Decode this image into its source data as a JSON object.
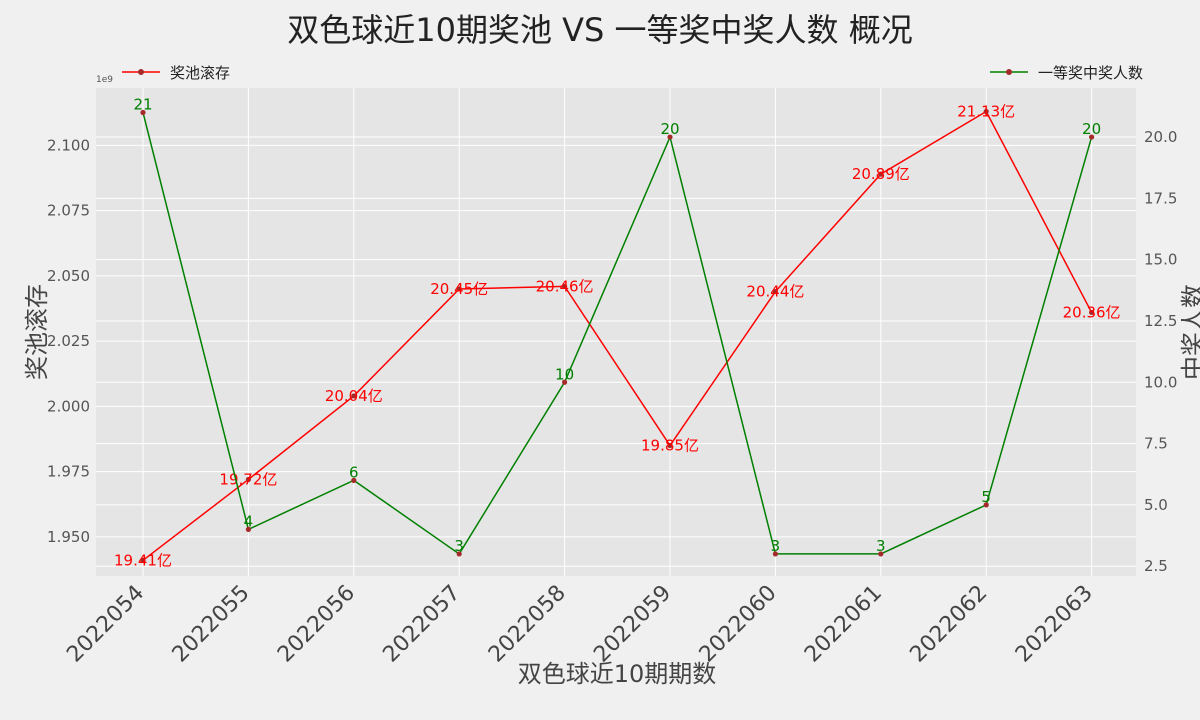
{
  "chart_data": {
    "type": "line",
    "title": "双色球近10期奖池 VS 一等奖中奖人数 概况",
    "xlabel": "双色球近10期期数",
    "ylabel_left": "奖池滚存",
    "ylabel_right": "中奖人数",
    "y_left_multiplier": "1e9",
    "categories": [
      "2022054",
      "2022055",
      "2022056",
      "2022057",
      "2022058",
      "2022059",
      "2022060",
      "2022061",
      "2022062",
      "2022063"
    ],
    "y_left_ticks": [
      "1.950",
      "1.975",
      "2.000",
      "2.025",
      "2.050",
      "2.075",
      "2.100"
    ],
    "y_right_ticks": [
      "2.5",
      "5.0",
      "7.5",
      "10.0",
      "12.5",
      "15.0",
      "17.5",
      "20.0"
    ],
    "ylim_left": [
      1.935,
      2.122
    ],
    "ylim_right": [
      2.1,
      22.0
    ],
    "grid": true,
    "series": [
      {
        "name": "奖池滚存",
        "axis": "left",
        "color": "#ff0000",
        "values": [
          1.941,
          1.972,
          2.004,
          2.045,
          2.046,
          1.985,
          2.044,
          2.089,
          2.113,
          2.036
        ],
        "labels": [
          "19.41亿",
          "19.72亿",
          "20.04亿",
          "20.45亿",
          "20.46亿",
          "19.85亿",
          "20.44亿",
          "20.89亿",
          "21.13亿",
          "20.36亿"
        ],
        "legend_position": "top-left"
      },
      {
        "name": "一等奖中奖人数",
        "axis": "right",
        "color": "#008000",
        "values": [
          21,
          4,
          6,
          3,
          10,
          20,
          3,
          3,
          5,
          20
        ],
        "labels": [
          "21",
          "4",
          "6",
          "3",
          "10",
          "20",
          "3",
          "3",
          "5",
          "20"
        ],
        "legend_position": "top-right"
      }
    ]
  }
}
